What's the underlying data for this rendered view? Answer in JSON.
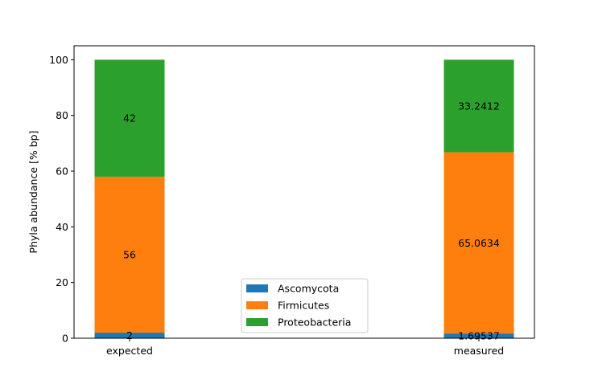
{
  "chart_data": {
    "type": "bar",
    "stacked": true,
    "categories": [
      "expected",
      "measured"
    ],
    "series": [
      {
        "name": "Ascomycota",
        "color": "#1f77b4",
        "values": [
          2,
          1.69537
        ],
        "labels": [
          "2",
          "1.69537"
        ]
      },
      {
        "name": "Firmicutes",
        "color": "#ff7f0e",
        "values": [
          56,
          65.0634
        ],
        "labels": [
          "56",
          "65.0634"
        ]
      },
      {
        "name": "Proteobacteria",
        "color": "#2ca02c",
        "values": [
          42,
          33.2412
        ],
        "labels": [
          "42",
          "33.2412"
        ]
      }
    ],
    "title": "",
    "xlabel": "",
    "ylabel": "Phyla abundance [% bp]",
    "ylim": [
      0,
      105
    ],
    "yticks": [
      0,
      20,
      40,
      60,
      80,
      100
    ],
    "ytick_labels": [
      "0",
      "20",
      "40",
      "60",
      "80",
      "100"
    ],
    "grid": false,
    "legend_position": "lower-center"
  }
}
